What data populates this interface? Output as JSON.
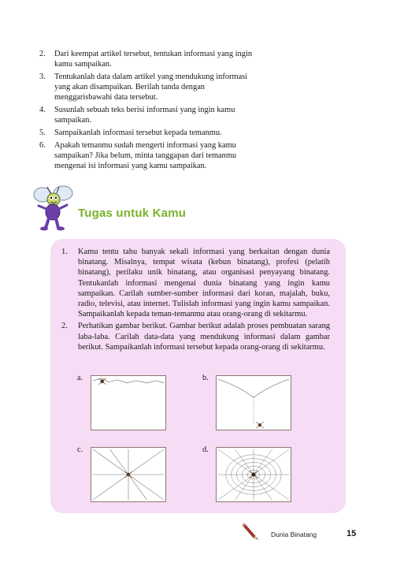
{
  "steps": [
    {
      "num": "2.",
      "text": "Dari keempat artikel tersebut, tentukan informasi yang ingin kamu sampaikan."
    },
    {
      "num": "3.",
      "text": "Tentukanlah data dalam artikel yang mendukung informasi yang akan disampaikan. Berilah tanda dengan menggarisbawahi data tersebut."
    },
    {
      "num": "4.",
      "text": "Susunlah sebuah teks berisi informasi yang ingin kamu sampaikan."
    },
    {
      "num": "5.",
      "text": "Sampaikanlah informasi tersebut kepada temanmu."
    },
    {
      "num": "6.",
      "text": "Apakah temanmu sudah mengerti informasi yang kamu sampaikan? Jika belum, minta tanggapan dari temanmu mengenai isi informasi yang kamu sampaikan."
    }
  ],
  "section": {
    "heading": "Tugas untuk Kamu",
    "heading_color": "#7ab22a",
    "panel_color": "#f6dcf4"
  },
  "tasks": [
    {
      "num": "1.",
      "text": "Kamu tentu tahu banyak sekali informasi yang berkaitan dengan dunia binatang. Misalnya, tempat wisata (kebun binatang), profesi (pelatih binatang), perilaku unik binatang, atau organisasi penyayang binatang. Tentukanlah informasi mengenai dunia binatang yang ingin kamu sampaikan. Carilah sumber-sumber informasi dari koran, majalah, buku, radio, televisi, atau internet. Tulislah informasi yang ingin kamu sampaikan. Sampaikanlah kepada teman-temanmu atau orang-orang di sekitarmu."
    },
    {
      "num": "2.",
      "text": "Perhatikan gambar berikut. Gambar berikut adalah proses pembuatan sarang laba-laba. Carilah data-data yang mendukung informasi dalam gambar berikut. Sampaikanlah informasi tersebut kepada orang-orang di sekitarmu."
    }
  ],
  "figures": {
    "a": "a.",
    "b": "b.",
    "c": "c.",
    "d": "d."
  },
  "footer": {
    "label": "Dunia Binatang",
    "page": "15"
  }
}
